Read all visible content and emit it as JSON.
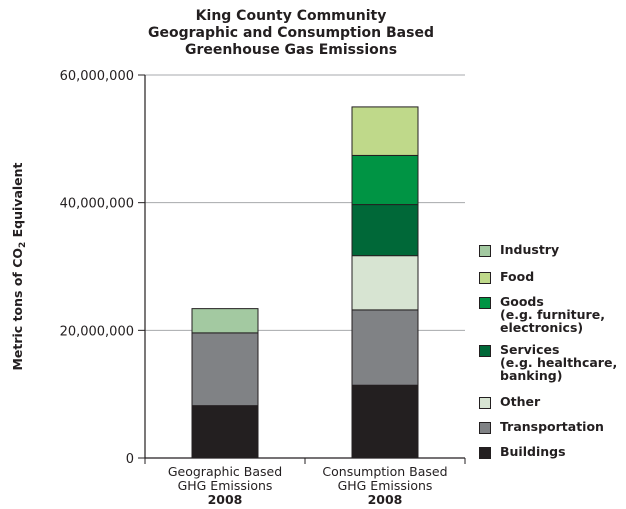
{
  "chart_data": {
    "type": "bar",
    "stacked": true,
    "title": [
      "King County Community",
      "Geographic and Consumption Based",
      "Greenhouse Gas Emissions"
    ],
    "ylabel_main": "Metric tons of CO",
    "ylabel_sub": "2",
    "ylabel_tail": " Equivalent",
    "ylim": [
      0,
      60000000
    ],
    "yticks": [
      {
        "value": 0,
        "label": "0"
      },
      {
        "value": 20000000,
        "label": "20,000,000"
      },
      {
        "value": 40000000,
        "label": "40,000,000"
      },
      {
        "value": 60000000,
        "label": "60,000,000"
      }
    ],
    "grid": true,
    "legend_position": "right",
    "categories": [
      {
        "line1": "Geographic Based",
        "line2": "GHG Emissions",
        "year": "2008"
      },
      {
        "line1": "Consumption Based",
        "line2": "GHG Emissions",
        "year": "2008"
      }
    ],
    "series": [
      {
        "name": "Buildings",
        "color": "#231f20",
        "values": [
          8200000,
          11400000
        ]
      },
      {
        "name": "Transportation",
        "color": "#808285",
        "values": [
          11400000,
          11800000
        ]
      },
      {
        "name": "Other",
        "color": "#d7e4d2",
        "values": [
          0,
          8500000
        ]
      },
      {
        "name": "Services",
        "sub": [
          "(e.g. healthcare,",
          "banking)"
        ],
        "color": "#006838",
        "values": [
          0,
          8000000
        ]
      },
      {
        "name": "Goods",
        "sub": [
          "(e.g. furniture,",
          "electronics)"
        ],
        "color": "#009444",
        "values": [
          0,
          7700000
        ]
      },
      {
        "name": "Food",
        "color": "#bfd98a",
        "values": [
          0,
          7600000
        ]
      },
      {
        "name": "Industry",
        "color": "#a3c9a1",
        "values": [
          3800000,
          0
        ]
      }
    ]
  }
}
